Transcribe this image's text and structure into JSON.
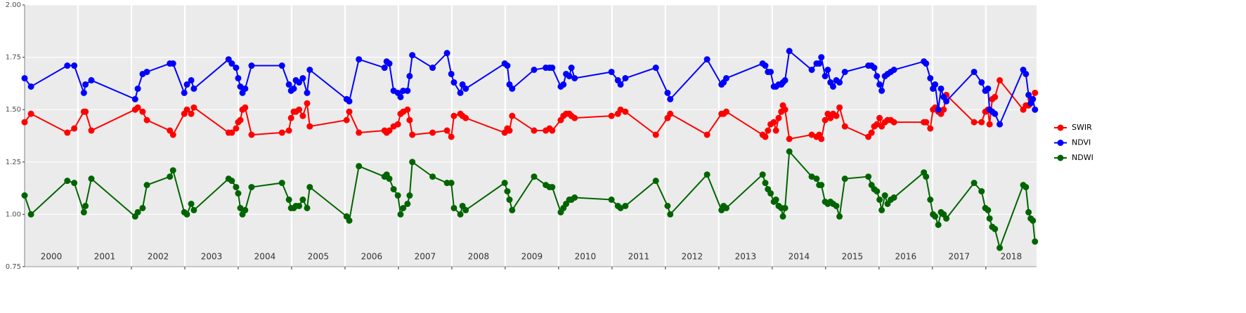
{
  "chart_data": {
    "type": "line",
    "x": [
      2000.0,
      2000.12,
      2000.8,
      2000.93,
      2001.11,
      2001.14,
      2001.25,
      2002.07,
      2002.12,
      2002.21,
      2002.29,
      2002.72,
      2002.78,
      2002.99,
      2003.04,
      2003.12,
      2003.17,
      2003.82,
      2003.88,
      2003.96,
      2004.0,
      2004.04,
      2004.08,
      2004.13,
      2004.25,
      2004.82,
      2004.95,
      2004.99,
      2005.04,
      2005.08,
      2005.14,
      2005.21,
      2005.29,
      2005.34,
      2006.03,
      2006.08,
      2006.26,
      2006.74,
      2006.78,
      2006.83,
      2006.91,
      2006.99,
      2007.04,
      2007.09,
      2007.17,
      2007.21,
      2007.26,
      2007.64,
      2007.91,
      2007.99,
      2008.04,
      2008.16,
      2008.2,
      2008.26,
      2008.99,
      2009.04,
      2009.08,
      2009.13,
      2009.54,
      2009.76,
      2009.83,
      2009.88,
      2010.04,
      2010.09,
      2010.14,
      2010.2,
      2010.24,
      2010.3,
      2010.99,
      2011.11,
      2011.16,
      2011.25,
      2011.82,
      2012.04,
      2012.09,
      2012.78,
      2013.05,
      2013.09,
      2013.14,
      2013.82,
      2013.87,
      2013.92,
      2013.97,
      2014.03,
      2014.07,
      2014.12,
      2014.17,
      2014.2,
      2014.24,
      2014.32,
      2014.74,
      2014.83,
      2014.88,
      2014.92,
      2014.99,
      2015.04,
      2015.09,
      2015.14,
      2015.2,
      2015.26,
      2015.36,
      2015.8,
      2015.86,
      2015.91,
      2015.96,
      2016.01,
      2016.05,
      2016.11,
      2016.16,
      2016.22,
      2016.28,
      2016.84,
      2016.88,
      2016.96,
      2017.01,
      2017.05,
      2017.11,
      2017.16,
      2017.21,
      2017.26,
      2017.78,
      2017.92,
      2017.99,
      2018.04,
      2018.07,
      2018.12,
      2018.17,
      2018.26,
      2018.7,
      2018.75,
      2018.8,
      2018.84,
      2018.88,
      2018.92
    ],
    "series": [
      {
        "name": "SWIR",
        "color": "#ff0000",
        "values": [
          1.44,
          1.48,
          1.39,
          1.41,
          1.49,
          1.49,
          1.4,
          1.5,
          1.51,
          1.49,
          1.45,
          1.4,
          1.38,
          1.48,
          1.5,
          1.48,
          1.51,
          1.39,
          1.39,
          1.41,
          1.44,
          1.45,
          1.5,
          1.51,
          1.38,
          1.39,
          1.4,
          1.46,
          1.49,
          1.49,
          1.5,
          1.47,
          1.53,
          1.42,
          1.45,
          1.49,
          1.39,
          1.4,
          1.39,
          1.4,
          1.42,
          1.43,
          1.48,
          1.49,
          1.5,
          1.45,
          1.38,
          1.39,
          1.4,
          1.37,
          1.47,
          1.48,
          1.47,
          1.46,
          1.39,
          1.41,
          1.4,
          1.47,
          1.4,
          1.4,
          1.41,
          1.4,
          1.45,
          1.47,
          1.48,
          1.48,
          1.47,
          1.46,
          1.47,
          1.48,
          1.5,
          1.49,
          1.38,
          1.46,
          1.48,
          1.38,
          1.48,
          1.48,
          1.49,
          1.38,
          1.37,
          1.4,
          1.43,
          1.44,
          1.4,
          1.46,
          1.49,
          1.52,
          1.5,
          1.36,
          1.38,
          1.37,
          1.38,
          1.36,
          1.45,
          1.48,
          1.46,
          1.48,
          1.47,
          1.51,
          1.42,
          1.37,
          1.39,
          1.42,
          1.43,
          1.46,
          1.42,
          1.44,
          1.45,
          1.45,
          1.44,
          1.44,
          1.44,
          1.41,
          1.5,
          1.51,
          1.49,
          1.48,
          1.5,
          1.57,
          1.44,
          1.44,
          1.49,
          1.5,
          1.43,
          1.55,
          1.56,
          1.64,
          1.5,
          1.52,
          1.52,
          1.55,
          1.55,
          1.58
        ]
      },
      {
        "name": "NDVI",
        "color": "#0000ff",
        "values": [
          1.65,
          1.61,
          1.71,
          1.71,
          1.58,
          1.62,
          1.64,
          1.55,
          1.6,
          1.67,
          1.68,
          1.72,
          1.72,
          1.58,
          1.62,
          1.64,
          1.6,
          1.74,
          1.72,
          1.7,
          1.65,
          1.61,
          1.58,
          1.6,
          1.71,
          1.71,
          1.62,
          1.59,
          1.6,
          1.64,
          1.63,
          1.65,
          1.58,
          1.69,
          1.55,
          1.54,
          1.74,
          1.7,
          1.73,
          1.72,
          1.59,
          1.58,
          1.56,
          1.59,
          1.59,
          1.66,
          1.76,
          1.7,
          1.77,
          1.67,
          1.63,
          1.58,
          1.62,
          1.6,
          1.72,
          1.71,
          1.62,
          1.6,
          1.69,
          1.7,
          1.7,
          1.7,
          1.61,
          1.62,
          1.67,
          1.66,
          1.7,
          1.65,
          1.68,
          1.64,
          1.62,
          1.65,
          1.7,
          1.58,
          1.55,
          1.74,
          1.62,
          1.63,
          1.65,
          1.72,
          1.71,
          1.68,
          1.68,
          1.61,
          1.61,
          1.62,
          1.62,
          1.63,
          1.64,
          1.78,
          1.69,
          1.72,
          1.72,
          1.75,
          1.66,
          1.69,
          1.63,
          1.61,
          1.64,
          1.63,
          1.68,
          1.71,
          1.71,
          1.7,
          1.66,
          1.62,
          1.59,
          1.66,
          1.67,
          1.68,
          1.69,
          1.73,
          1.72,
          1.65,
          1.6,
          1.62,
          1.5,
          1.6,
          1.56,
          1.54,
          1.68,
          1.63,
          1.59,
          1.6,
          1.5,
          1.49,
          1.48,
          1.43,
          1.69,
          1.67,
          1.57,
          1.53,
          1.55,
          1.5
        ]
      },
      {
        "name": "NDWI",
        "color": "#006400",
        "values": [
          1.09,
          1.0,
          1.16,
          1.15,
          1.01,
          1.04,
          1.17,
          0.99,
          1.01,
          1.03,
          1.14,
          1.18,
          1.21,
          1.01,
          1.0,
          1.05,
          1.02,
          1.17,
          1.16,
          1.13,
          1.1,
          1.03,
          1.0,
          1.02,
          1.13,
          1.15,
          1.07,
          1.03,
          1.03,
          1.04,
          1.04,
          1.07,
          1.03,
          1.13,
          0.99,
          0.97,
          1.23,
          1.18,
          1.19,
          1.17,
          1.12,
          1.09,
          1.0,
          1.03,
          1.05,
          1.09,
          1.25,
          1.18,
          1.15,
          1.15,
          1.03,
          1.0,
          1.04,
          1.02,
          1.15,
          1.11,
          1.07,
          1.02,
          1.18,
          1.14,
          1.13,
          1.13,
          1.01,
          1.03,
          1.05,
          1.07,
          1.07,
          1.08,
          1.07,
          1.04,
          1.03,
          1.04,
          1.16,
          1.04,
          1.0,
          1.19,
          1.02,
          1.04,
          1.03,
          1.19,
          1.15,
          1.12,
          1.1,
          1.06,
          1.07,
          1.04,
          1.03,
          0.99,
          1.03,
          1.3,
          1.18,
          1.17,
          1.14,
          1.14,
          1.06,
          1.05,
          1.06,
          1.05,
          1.04,
          0.99,
          1.17,
          1.18,
          1.14,
          1.12,
          1.11,
          1.07,
          1.02,
          1.09,
          1.05,
          1.07,
          1.08,
          1.2,
          1.18,
          1.07,
          1.0,
          0.99,
          0.95,
          1.01,
          1.0,
          0.98,
          1.15,
          1.11,
          1.03,
          1.02,
          0.98,
          0.94,
          0.93,
          0.84,
          1.14,
          1.13,
          1.01,
          0.98,
          0.97,
          0.87
        ]
      }
    ],
    "xlim": [
      2000,
      2018.95
    ],
    "xticks": [
      2001,
      2002,
      2003,
      2004,
      2005,
      2006,
      2007,
      2008,
      2009,
      2010,
      2011,
      2012,
      2013,
      2014,
      2015,
      2016,
      2017,
      2018
    ],
    "year_labels": [
      "2000",
      "2001",
      "2002",
      "2003",
      "2004",
      "2005",
      "2006",
      "2007",
      "2008",
      "2009",
      "2010",
      "2011",
      "2012",
      "2013",
      "2014",
      "2015",
      "2016",
      "2017",
      "2018"
    ],
    "ylim": [
      0.75,
      2.0
    ],
    "yticks": [
      {
        "value": 0.75,
        "label": "0.75"
      },
      {
        "value": 1.0,
        "label": "1.00"
      },
      {
        "value": 1.25,
        "label": "1.25"
      },
      {
        "value": 1.5,
        "label": "1.50"
      },
      {
        "value": 1.75,
        "label": "1.75"
      },
      {
        "value": 2.0,
        "label": "2.00"
      }
    ],
    "grid": true,
    "legend": "right"
  }
}
